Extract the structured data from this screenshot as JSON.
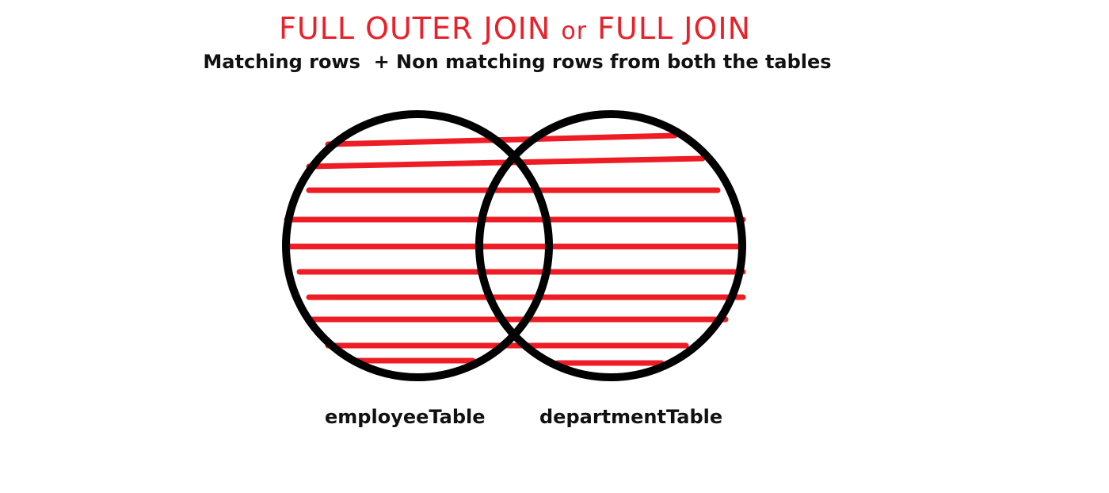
{
  "title": {
    "part1": "FULL OUTER JOIN",
    "connector": "or",
    "part2": "FULL JOIN"
  },
  "subtitle": "Matching rows  + Non matching rows from both the tables",
  "sets": {
    "left_label": "employeeTable",
    "right_label": "departmentTable"
  },
  "colors": {
    "title": "#e8212a",
    "hatch": "#ee1c24",
    "circle_outline": "#000000",
    "text": "#111111"
  }
}
